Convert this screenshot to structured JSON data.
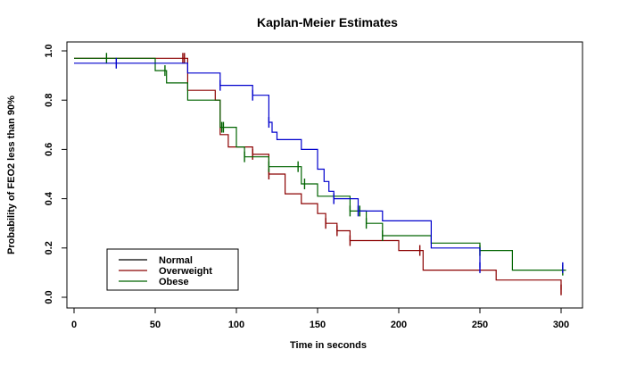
{
  "chart_data": {
    "type": "line",
    "title": "Kaplan-Meier Estimates",
    "xlabel": "Time in seconds",
    "ylabel": "Probability of FEO2 less than 90%",
    "xlim": [
      0,
      310
    ],
    "ylim": [
      0,
      1
    ],
    "xticks": [
      0,
      50,
      100,
      150,
      200,
      250,
      300
    ],
    "yticks": [
      0.0,
      0.2,
      0.4,
      0.6,
      0.8,
      1.0
    ],
    "ytick_labels": [
      "0.0",
      "0.2",
      "0.4",
      "0.6",
      "0.8",
      "1.0"
    ],
    "grid": false,
    "legend_position": "bottom-left",
    "series": [
      {
        "name": "Normal",
        "color": "#000000",
        "steps": [],
        "censored": []
      },
      {
        "name": "Overweight",
        "color": "#8b0000",
        "steps": [
          [
            0,
            0.97
          ],
          [
            70,
            0.97
          ],
          [
            70,
            0.84
          ],
          [
            87,
            0.84
          ],
          [
            87,
            0.8
          ],
          [
            90,
            0.8
          ],
          [
            90,
            0.66
          ],
          [
            95,
            0.66
          ],
          [
            95,
            0.61
          ],
          [
            110,
            0.61
          ],
          [
            110,
            0.58
          ],
          [
            120,
            0.58
          ],
          [
            120,
            0.5
          ],
          [
            130,
            0.5
          ],
          [
            130,
            0.42
          ],
          [
            140,
            0.42
          ],
          [
            140,
            0.38
          ],
          [
            150,
            0.38
          ],
          [
            150,
            0.34
          ],
          [
            155,
            0.34
          ],
          [
            155,
            0.3
          ],
          [
            162,
            0.3
          ],
          [
            162,
            0.27
          ],
          [
            170,
            0.27
          ],
          [
            170,
            0.23
          ],
          [
            200,
            0.23
          ],
          [
            200,
            0.19
          ],
          [
            215,
            0.19
          ],
          [
            215,
            0.11
          ],
          [
            260,
            0.11
          ],
          [
            260,
            0.07
          ],
          [
            300,
            0.07
          ],
          [
            300,
            0.03
          ]
        ],
        "censored": [
          67,
          68,
          110,
          120,
          155,
          162,
          170,
          213,
          300
        ]
      },
      {
        "name": "Obese",
        "color": "#006400",
        "steps": [
          [
            0,
            0.97
          ],
          [
            50,
            0.97
          ],
          [
            50,
            0.92
          ],
          [
            57,
            0.92
          ],
          [
            57,
            0.87
          ],
          [
            70,
            0.87
          ],
          [
            70,
            0.8
          ],
          [
            90,
            0.8
          ],
          [
            90,
            0.69
          ],
          [
            100,
            0.69
          ],
          [
            100,
            0.61
          ],
          [
            105,
            0.61
          ],
          [
            105,
            0.57
          ],
          [
            120,
            0.57
          ],
          [
            120,
            0.53
          ],
          [
            140,
            0.53
          ],
          [
            140,
            0.46
          ],
          [
            150,
            0.46
          ],
          [
            150,
            0.41
          ],
          [
            170,
            0.41
          ],
          [
            170,
            0.35
          ],
          [
            180,
            0.35
          ],
          [
            180,
            0.3
          ],
          [
            190,
            0.3
          ],
          [
            190,
            0.25
          ],
          [
            220,
            0.25
          ],
          [
            220,
            0.22
          ],
          [
            250,
            0.22
          ],
          [
            250,
            0.19
          ],
          [
            270,
            0.19
          ],
          [
            270,
            0.11
          ],
          [
            303,
            0.11
          ]
        ],
        "censored": [
          20,
          56,
          91,
          92,
          105,
          120,
          138,
          142,
          170,
          176,
          180,
          190,
          250,
          301
        ]
      },
      {
        "name": "",
        "color": "#0000cd",
        "steps": [
          [
            0,
            0.95
          ],
          [
            70,
            0.95
          ],
          [
            70,
            0.91
          ],
          [
            90,
            0.91
          ],
          [
            90,
            0.86
          ],
          [
            110,
            0.86
          ],
          [
            110,
            0.82
          ],
          [
            120,
            0.82
          ],
          [
            120,
            0.71
          ],
          [
            122,
            0.71
          ],
          [
            122,
            0.67
          ],
          [
            125,
            0.67
          ],
          [
            125,
            0.64
          ],
          [
            140,
            0.64
          ],
          [
            140,
            0.6
          ],
          [
            150,
            0.6
          ],
          [
            150,
            0.52
          ],
          [
            154,
            0.52
          ],
          [
            154,
            0.47
          ],
          [
            157,
            0.47
          ],
          [
            157,
            0.43
          ],
          [
            160,
            0.43
          ],
          [
            160,
            0.4
          ],
          [
            175,
            0.4
          ],
          [
            175,
            0.35
          ],
          [
            190,
            0.35
          ],
          [
            190,
            0.31
          ],
          [
            220,
            0.31
          ],
          [
            220,
            0.2
          ],
          [
            250,
            0.2
          ],
          [
            250,
            0.12
          ]
        ],
        "censored": [
          26,
          90,
          110,
          120,
          160,
          175,
          250,
          301
        ]
      }
    ]
  }
}
